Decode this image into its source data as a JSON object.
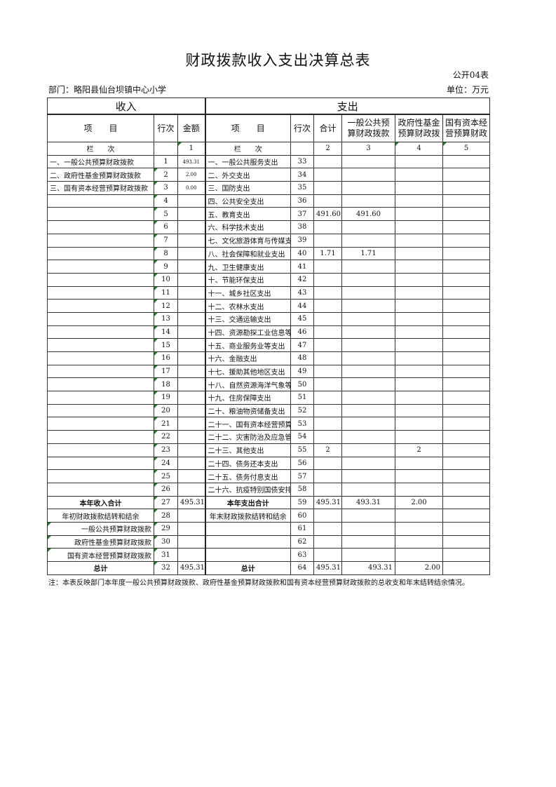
{
  "title": "财政拨款收入支出决算总表",
  "form_no": "公开04表",
  "department": "部门：略阳县仙台坝镇中心小学",
  "unit": "单位：万元",
  "sections": {
    "income": "收入",
    "expense": "支出"
  },
  "headers": {
    "inc_item": "项　　目",
    "inc_line": "行次",
    "inc_amount": "金额",
    "exp_item": "项　　目",
    "exp_line": "行次",
    "exp_total": "合计",
    "exp_general": "一般公共预算财政拨款",
    "exp_fund": "政府性基金预算财政拨",
    "exp_state": "国有资本经营预算财政"
  },
  "lanci": {
    "label": "栏　　次",
    "c1": "1",
    "c2": "2",
    "c3": "3",
    "c4": "4",
    "c5": "5"
  },
  "rows": [
    [
      "一、一般公共预算财政拨款",
      "1",
      "493.31",
      "一、一般公共服务支出",
      "33",
      "",
      "",
      "",
      ""
    ],
    [
      "二、政府性基金预算财政拨款",
      "2",
      "2.00",
      "二、外交支出",
      "34",
      "",
      "",
      "",
      ""
    ],
    [
      "三、国有资本经营预算财政拨款",
      "3",
      "0.00",
      "三、国防支出",
      "35",
      "",
      "",
      "",
      ""
    ],
    [
      "",
      "4",
      "",
      "四、公共安全支出",
      "36",
      "",
      "",
      "",
      ""
    ],
    [
      "",
      "5",
      "",
      "五、教育支出",
      "37",
      "491.60",
      "491.60",
      "",
      ""
    ],
    [
      "",
      "6",
      "",
      "六、科学技术支出",
      "38",
      "",
      "",
      "",
      ""
    ],
    [
      "",
      "7",
      "",
      "七、文化旅游体育与传媒支出",
      "39",
      "",
      "",
      "",
      ""
    ],
    [
      "",
      "8",
      "",
      "八、社会保障和就业支出",
      "40",
      "1.71",
      "1.71",
      "",
      ""
    ],
    [
      "",
      "9",
      "",
      "九、卫生健康支出",
      "41",
      "",
      "",
      "",
      ""
    ],
    [
      "",
      "10",
      "",
      "十、节能环保支出",
      "42",
      "",
      "",
      "",
      ""
    ],
    [
      "",
      "11",
      "",
      "十一、城乡社区支出",
      "43",
      "",
      "",
      "",
      ""
    ],
    [
      "",
      "12",
      "",
      "十二、农林水支出",
      "44",
      "",
      "",
      "",
      ""
    ],
    [
      "",
      "13",
      "",
      "十三、交通运输支出",
      "45",
      "",
      "",
      "",
      ""
    ],
    [
      "",
      "14",
      "",
      "十四、资源勘探工业信息等支出",
      "46",
      "",
      "",
      "",
      ""
    ],
    [
      "",
      "15",
      "",
      "十五、商业服务业等支出",
      "47",
      "",
      "",
      "",
      ""
    ],
    [
      "",
      "16",
      "",
      "十六、金融支出",
      "48",
      "",
      "",
      "",
      ""
    ],
    [
      "",
      "17",
      "",
      "十七、援助其他地区支出",
      "49",
      "",
      "",
      "",
      ""
    ],
    [
      "",
      "18",
      "",
      "十八、自然资源海洋气象等支出",
      "50",
      "",
      "",
      "",
      ""
    ],
    [
      "",
      "19",
      "",
      "十九、住房保障支出",
      "51",
      "",
      "",
      "",
      ""
    ],
    [
      "",
      "20",
      "",
      "二十、粮油物资储备支出",
      "52",
      "",
      "",
      "",
      ""
    ],
    [
      "",
      "21",
      "",
      "二十一、国有资本经营预算支出",
      "53",
      "",
      "",
      "",
      ""
    ],
    [
      "",
      "22",
      "",
      "二十二、灾害防治及应急管理支出",
      "54",
      "",
      "",
      "",
      ""
    ],
    [
      "",
      "23",
      "",
      "二十三、其他支出",
      "55",
      "2",
      "",
      "2",
      ""
    ],
    [
      "",
      "24",
      "",
      "二十四、债务还本支出",
      "56",
      "",
      "",
      "",
      ""
    ],
    [
      "",
      "25",
      "",
      "二十五、债务付息支出",
      "57",
      "",
      "",
      "",
      ""
    ],
    [
      "",
      "26",
      "",
      "二十六、抗疫特别国债安排的支出",
      "58",
      "",
      "",
      "",
      ""
    ],
    [
      "本年收入合计",
      "27",
      "495.31",
      "本年支出合计",
      "59",
      "495.31",
      "493.31",
      "2.00",
      ""
    ],
    [
      "年初财政拨款结转和结余",
      "28",
      "",
      "年末财政拨款结转和结余",
      "60",
      "",
      "",
      "",
      ""
    ],
    [
      "一般公共预算财政拨款",
      "29",
      "",
      "",
      "61",
      "",
      "",
      "",
      ""
    ],
    [
      "政府性基金预算财政拨款",
      "30",
      "",
      "",
      "62",
      "",
      "",
      "",
      ""
    ],
    [
      "国有资本经营预算财政拨款",
      "31",
      "",
      "",
      "63",
      "",
      "",
      "",
      ""
    ],
    [
      "总计",
      "32",
      "495.31",
      "总计",
      "64",
      "495.31",
      "493.31",
      "2.00",
      ""
    ]
  ],
  "note": "注：本表反映部门本年度一般公共预算财政拨款、政府性基金预算财政拨款和国有资本经营预算财政拨款的总收支和年末结转结余情况。",
  "colors": {
    "border": "#333333",
    "comment_marker": "#2a7a2a"
  }
}
